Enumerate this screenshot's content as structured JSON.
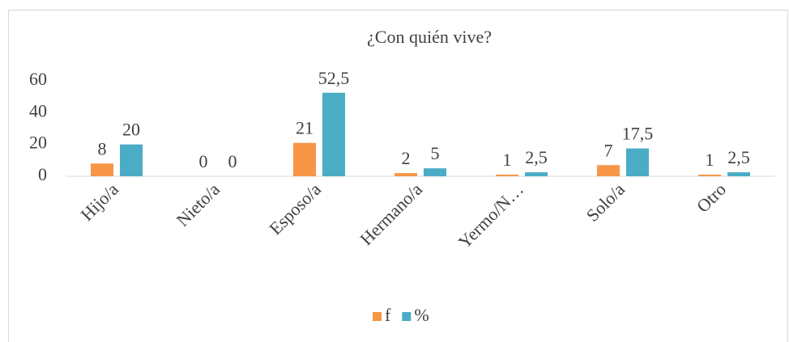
{
  "chart_data": {
    "type": "bar",
    "title": "¿Con quién vive?",
    "categories": [
      "Hijo/a",
      "Nieto/a",
      "Esposo/a",
      "Hermano/a",
      "Yermo/N…",
      "Solo/a",
      "Otro"
    ],
    "series": [
      {
        "name": "f",
        "color": "#f79646",
        "values": [
          8,
          0,
          21,
          2,
          1,
          7,
          1
        ]
      },
      {
        "name": "%",
        "color": "#4bacc6",
        "values": [
          20,
          0,
          52.5,
          5,
          2.5,
          17.5,
          2.5
        ],
        "value_labels": [
          "20",
          "0",
          "52,5",
          "5",
          "2,5",
          "17,5",
          "2,5"
        ]
      }
    ],
    "ylim": [
      0,
      60
    ],
    "yticks": [
      0,
      20,
      40,
      60
    ],
    "grid": false,
    "legend": "bottom"
  }
}
